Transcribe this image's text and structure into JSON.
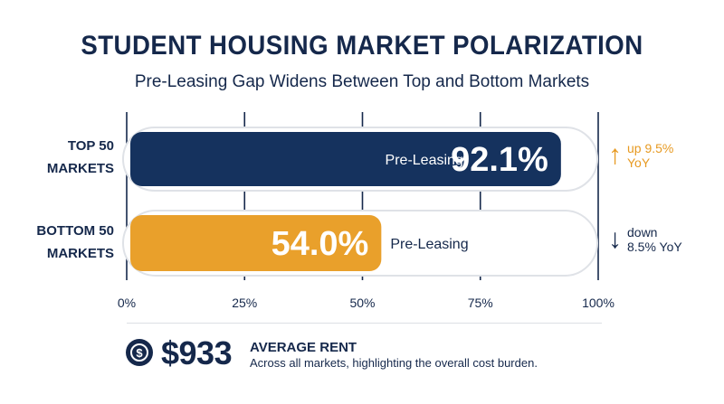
{
  "title": "STUDENT HOUSING MARKET POLARIZATION",
  "subtitle": "Pre-Leasing Gap Widens Between Top and Bottom Markets",
  "chart_data": {
    "type": "bar",
    "orientation": "horizontal",
    "categories": [
      [
        "TOP 50",
        "MARKETS"
      ],
      [
        "BOTTOM 50",
        "MARKETS"
      ]
    ],
    "series": [
      {
        "name": "Pre-Leasing",
        "values": [
          92.1,
          54.0
        ]
      }
    ],
    "value_labels": [
      "92.1%",
      "54.0%"
    ],
    "bar_label": "Pre-Leasing",
    "bar_colors": [
      "#15325e",
      "#e9a02b"
    ],
    "xlim": [
      0,
      100
    ],
    "x_ticks": [
      0,
      25,
      50,
      75,
      100
    ],
    "x_tick_labels": [
      "0%",
      "25%",
      "50%",
      "75%",
      "100%"
    ],
    "grid": true
  },
  "trends": [
    {
      "icon": "arrow-up-icon",
      "line1": "up 9.5%",
      "line2": "YoY",
      "color": "#e79a22"
    },
    {
      "icon": "arrow-down-icon",
      "line1": "down",
      "line2": "8.5% YoY",
      "color": "#15284b"
    }
  ],
  "rent": {
    "icon": "dollar-circle-icon",
    "value": "$933",
    "title": "AVERAGE RENT",
    "description": "Across all markets, highlighting the overall cost burden."
  },
  "colors": {
    "navy": "#15284b",
    "orange": "#e9a02b",
    "grid": "#15284b"
  }
}
